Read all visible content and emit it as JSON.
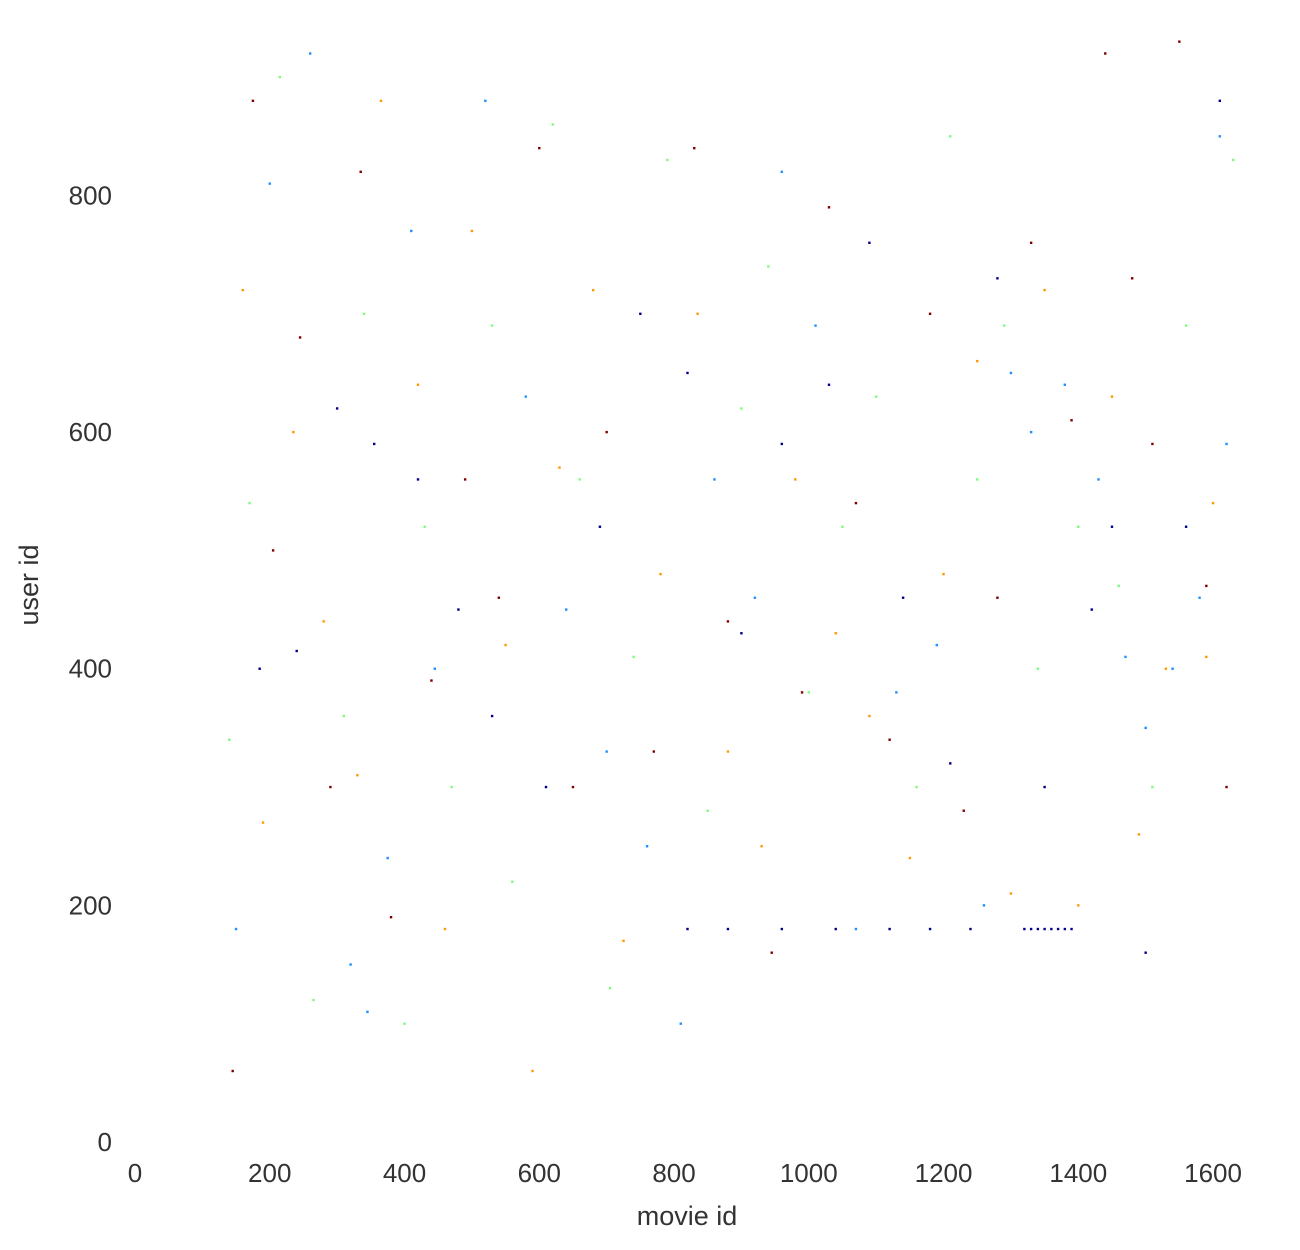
{
  "chart_data": {
    "type": "scatter",
    "title": "",
    "xlabel": "movie id",
    "ylabel": "user id",
    "xlim": [
      0,
      1640
    ],
    "ylim": [
      0,
      950
    ],
    "xticks": [
      0,
      200,
      400,
      600,
      800,
      1000,
      1200,
      1400,
      1600
    ],
    "xtick_labels": [
      "0",
      "200",
      "400",
      "600",
      "800",
      "1000",
      "1200",
      "1400",
      "1600"
    ],
    "yticks": [
      0,
      200,
      400,
      600,
      800
    ],
    "ytick_labels": [
      "0",
      "200",
      "400",
      "600",
      "800"
    ],
    "grid": false,
    "legend": "none",
    "colormap": [
      "#00008b",
      "#1e90ff",
      "#7cfc7c",
      "#ff9900",
      "#800000"
    ],
    "rating_levels": [
      1,
      2,
      3,
      4,
      5
    ],
    "series": [
      {
        "values": [
          [
            1320,
            180
          ],
          [
            1330,
            180
          ],
          [
            1340,
            180
          ],
          [
            1350,
            180
          ],
          [
            1360,
            180
          ],
          [
            1370,
            180
          ],
          [
            1380,
            180
          ],
          [
            1390,
            180
          ],
          [
            820,
            180
          ],
          [
            880,
            180
          ],
          [
            960,
            180
          ],
          [
            1040,
            180
          ],
          [
            1120,
            180
          ],
          [
            1180,
            180
          ],
          [
            1240,
            180
          ],
          [
            185,
            400
          ],
          [
            240,
            415
          ],
          [
            300,
            620
          ],
          [
            355,
            590
          ],
          [
            420,
            560
          ],
          [
            480,
            450
          ],
          [
            530,
            360
          ],
          [
            610,
            300
          ],
          [
            690,
            520
          ],
          [
            750,
            700
          ],
          [
            820,
            650
          ],
          [
            900,
            430
          ],
          [
            960,
            590
          ],
          [
            1030,
            640
          ],
          [
            1090,
            760
          ],
          [
            1140,
            460
          ],
          [
            1210,
            320
          ],
          [
            1280,
            730
          ],
          [
            1350,
            300
          ],
          [
            1420,
            450
          ],
          [
            1450,
            520
          ],
          [
            1500,
            160
          ],
          [
            1560,
            520
          ],
          [
            1610,
            880
          ]
        ]
      },
      {
        "values": [
          [
            150,
            180
          ],
          [
            200,
            810
          ],
          [
            260,
            920
          ],
          [
            320,
            150
          ],
          [
            345,
            110
          ],
          [
            375,
            240
          ],
          [
            410,
            770
          ],
          [
            445,
            400
          ],
          [
            520,
            880
          ],
          [
            580,
            630
          ],
          [
            640,
            450
          ],
          [
            700,
            330
          ],
          [
            760,
            250
          ],
          [
            810,
            100
          ],
          [
            860,
            560
          ],
          [
            920,
            460
          ],
          [
            960,
            820
          ],
          [
            1010,
            690
          ],
          [
            1070,
            180
          ],
          [
            1130,
            380
          ],
          [
            1190,
            420
          ],
          [
            1260,
            200
          ],
          [
            1300,
            650
          ],
          [
            1330,
            600
          ],
          [
            1380,
            640
          ],
          [
            1430,
            560
          ],
          [
            1470,
            410
          ],
          [
            1500,
            350
          ],
          [
            1540,
            400
          ],
          [
            1580,
            460
          ],
          [
            1620,
            590
          ],
          [
            1610,
            850
          ]
        ]
      },
      {
        "values": [
          [
            140,
            340
          ],
          [
            170,
            540
          ],
          [
            215,
            900
          ],
          [
            265,
            120
          ],
          [
            310,
            360
          ],
          [
            340,
            700
          ],
          [
            400,
            100
          ],
          [
            430,
            520
          ],
          [
            470,
            300
          ],
          [
            530,
            690
          ],
          [
            560,
            220
          ],
          [
            620,
            860
          ],
          [
            660,
            560
          ],
          [
            705,
            130
          ],
          [
            740,
            410
          ],
          [
            790,
            830
          ],
          [
            850,
            280
          ],
          [
            900,
            620
          ],
          [
            940,
            740
          ],
          [
            1000,
            380
          ],
          [
            1050,
            520
          ],
          [
            1100,
            630
          ],
          [
            1160,
            300
          ],
          [
            1210,
            850
          ],
          [
            1250,
            560
          ],
          [
            1290,
            690
          ],
          [
            1340,
            400
          ],
          [
            1400,
            520
          ],
          [
            1460,
            470
          ],
          [
            1510,
            300
          ],
          [
            1560,
            690
          ],
          [
            1630,
            830
          ]
        ]
      },
      {
        "values": [
          [
            160,
            720
          ],
          [
            190,
            270
          ],
          [
            235,
            600
          ],
          [
            280,
            440
          ],
          [
            330,
            310
          ],
          [
            365,
            880
          ],
          [
            420,
            640
          ],
          [
            460,
            180
          ],
          [
            500,
            770
          ],
          [
            550,
            420
          ],
          [
            590,
            60
          ],
          [
            630,
            570
          ],
          [
            680,
            720
          ],
          [
            725,
            170
          ],
          [
            780,
            480
          ],
          [
            835,
            700
          ],
          [
            880,
            330
          ],
          [
            930,
            250
          ],
          [
            980,
            560
          ],
          [
            1040,
            430
          ],
          [
            1090,
            360
          ],
          [
            1150,
            240
          ],
          [
            1200,
            480
          ],
          [
            1250,
            660
          ],
          [
            1300,
            210
          ],
          [
            1350,
            720
          ],
          [
            1400,
            200
          ],
          [
            1450,
            630
          ],
          [
            1490,
            260
          ],
          [
            1530,
            400
          ],
          [
            1590,
            410
          ],
          [
            1600,
            540
          ]
        ]
      },
      {
        "values": [
          [
            145,
            60
          ],
          [
            175,
            880
          ],
          [
            205,
            500
          ],
          [
            245,
            680
          ],
          [
            290,
            300
          ],
          [
            335,
            820
          ],
          [
            380,
            190
          ],
          [
            440,
            390
          ],
          [
            490,
            560
          ],
          [
            540,
            460
          ],
          [
            600,
            840
          ],
          [
            650,
            300
          ],
          [
            700,
            600
          ],
          [
            770,
            330
          ],
          [
            830,
            840
          ],
          [
            880,
            440
          ],
          [
            945,
            160
          ],
          [
            990,
            380
          ],
          [
            1030,
            790
          ],
          [
            1070,
            540
          ],
          [
            1120,
            340
          ],
          [
            1180,
            700
          ],
          [
            1230,
            280
          ],
          [
            1280,
            460
          ],
          [
            1330,
            760
          ],
          [
            1390,
            610
          ],
          [
            1440,
            920
          ],
          [
            1480,
            730
          ],
          [
            1510,
            590
          ],
          [
            1550,
            930
          ],
          [
            1590,
            470
          ],
          [
            1620,
            300
          ]
        ]
      }
    ]
  }
}
